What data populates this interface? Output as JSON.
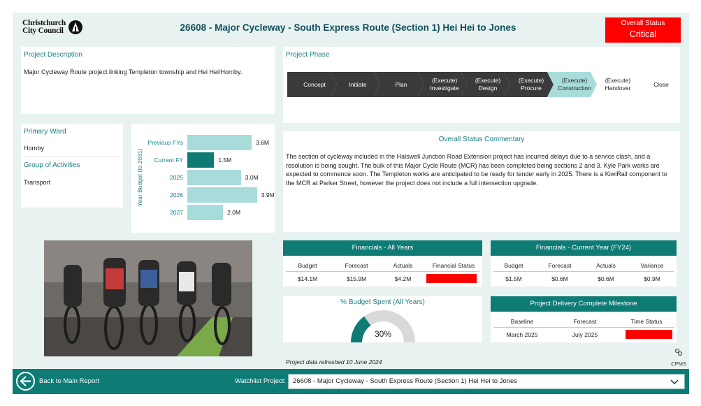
{
  "header": {
    "logo_line1": "Christchurch",
    "logo_line2": "City Council",
    "title": "26608 - Major Cycleway - South Express Route (Section 1) Hei Hei to Jones",
    "status_label": "Overall Status",
    "status_value": "Critical",
    "status_color": "#ff0000"
  },
  "description": {
    "title": "Project Description",
    "text": "Major Cycleway Route project linking Templeton township and Hei Hei/Hornby."
  },
  "phase": {
    "title": "Project Phase",
    "current_index": 6,
    "steps": [
      {
        "label_line1": "Concept",
        "label_line2": ""
      },
      {
        "label_line1": "Initiate",
        "label_line2": ""
      },
      {
        "label_line1": "Plan",
        "label_line2": ""
      },
      {
        "label_line1": "(Execute)",
        "label_line2": "Investigate"
      },
      {
        "label_line1": "(Execute)",
        "label_line2": "Design"
      },
      {
        "label_line1": "(Execute)",
        "label_line2": "Procure"
      },
      {
        "label_line1": "(Execute)",
        "label_line2": "Construction"
      },
      {
        "label_line1": "(Execute)",
        "label_line2": "Handover"
      },
      {
        "label_line1": "Close",
        "label_line2": ""
      }
    ]
  },
  "ward": {
    "ward_label": "Primary Ward",
    "ward_value": "Hornby",
    "group_label": "Group of Activities",
    "group_value": "Transport"
  },
  "chart_data": {
    "type": "bar",
    "orientation": "horizontal",
    "ylabel": "Year Budget (to 2031)",
    "categories": [
      "Previous FYs",
      "Current FY",
      "2025",
      "2026",
      "2027"
    ],
    "values": [
      3.6,
      1.5,
      3.0,
      3.9,
      2.0
    ],
    "value_labels": [
      "3.6M",
      "1.5M",
      "3.0M",
      "3.9M",
      "2.0M"
    ],
    "highlight_index": 1,
    "colors": {
      "bar": "#a8dcdb",
      "highlight": "#0e7b75"
    }
  },
  "commentary": {
    "title": "Overall Status Commentary",
    "text": "The section of cycleway included in the Halswell Junction Road Extension project has incurred delays due to a service clash, and a resolution is being sought. The bulk of this Major Cycle Route (MCR) has been completed being sections 2 and 3. Kyle Park works are expected to commence soon. The Templeton works are anticipated to be ready for tender early in 2025. There is a KiwiRail component to the MCR at Parker Street, however the project does not include a full intersection upgrade."
  },
  "financials_all": {
    "title": "Financials - All Years",
    "headers": [
      "Budget",
      "Forecast",
      "Actuals",
      "Financial Status"
    ],
    "values": [
      "$14.1M",
      "$15.9M",
      "$4.2M"
    ],
    "status_color": "#ff0000"
  },
  "financials_current": {
    "title": "Financials - Current Year (FY24)",
    "headers": [
      "Budget",
      "Forecast",
      "Actuals",
      "Variance"
    ],
    "values": [
      "$1.5M",
      "$0.6M",
      "$0.6M",
      "$0.9M"
    ]
  },
  "budget_spent": {
    "title": "% Budget Spent (All Years)",
    "percent": 30,
    "label": "30%"
  },
  "milestone": {
    "title": "Project Delivery Complete Milestone",
    "headers": [
      "Baseline",
      "Forecast",
      "Time Status"
    ],
    "values": [
      "March 2025",
      "July 2025"
    ],
    "status_color": "#ff0000"
  },
  "refresh": {
    "text": "Project data refreshed 10 June 2024",
    "cpms_label": "CPMS"
  },
  "footer": {
    "back_label": "Back to Main Report",
    "watchlist_label": "Watchlist Project:",
    "watchlist_value": "26608 - Major Cycleway - South Express Route (Section 1) Hei Hei to Jones"
  },
  "colors": {
    "accent": "#0e7b75",
    "background": "#e8f3f1",
    "phase_dark": "#3a3a3a",
    "phase_current": "#a8dcdb"
  }
}
